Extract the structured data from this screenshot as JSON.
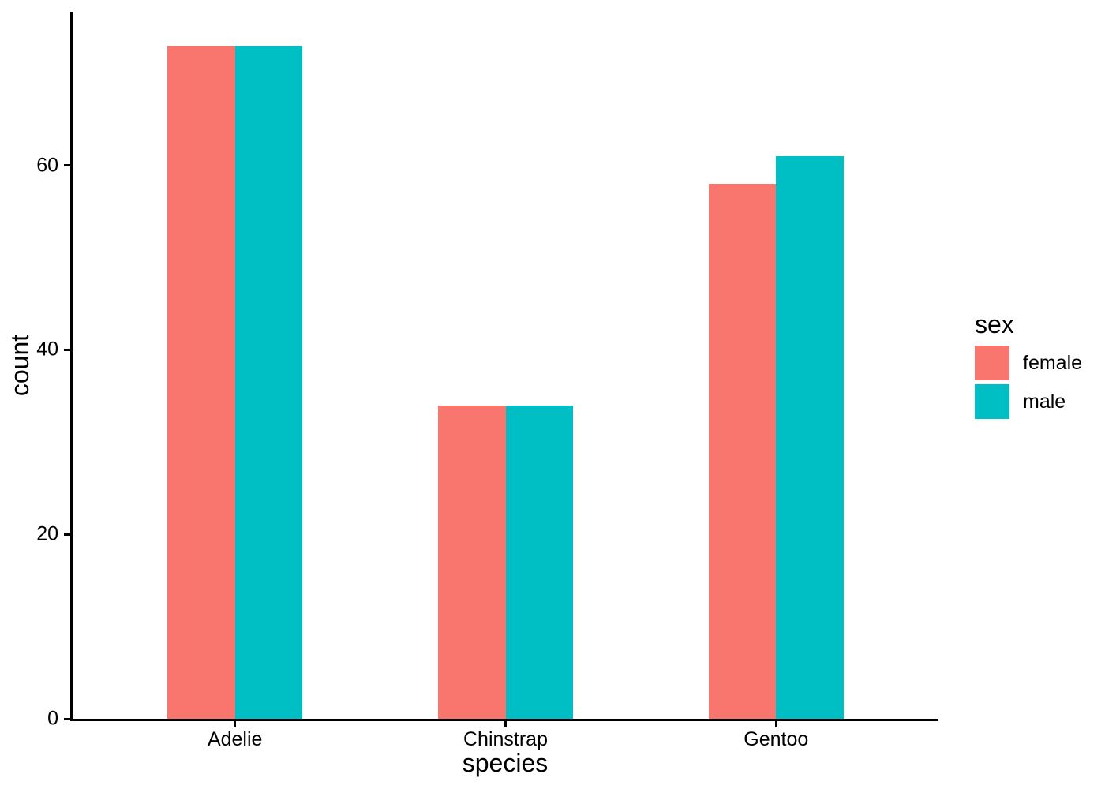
{
  "chart_data": {
    "type": "bar",
    "grouping": "dodged",
    "xlabel": "species",
    "ylabel": "count",
    "categories": [
      "Adelie",
      "Chinstrap",
      "Gentoo"
    ],
    "series": [
      {
        "name": "female",
        "color": "#F8766D",
        "values": [
          73,
          34,
          58
        ]
      },
      {
        "name": "male",
        "color": "#00BFC4",
        "values": [
          73,
          34,
          61
        ]
      }
    ],
    "yticks": [
      0,
      20,
      40,
      60
    ],
    "ylim": [
      0,
      76.65
    ],
    "legend_title": "sex",
    "legend_position": "right",
    "grid": false,
    "background_color": "#FFFFFF",
    "axis_color": "#000000",
    "text_color": "#000000"
  }
}
